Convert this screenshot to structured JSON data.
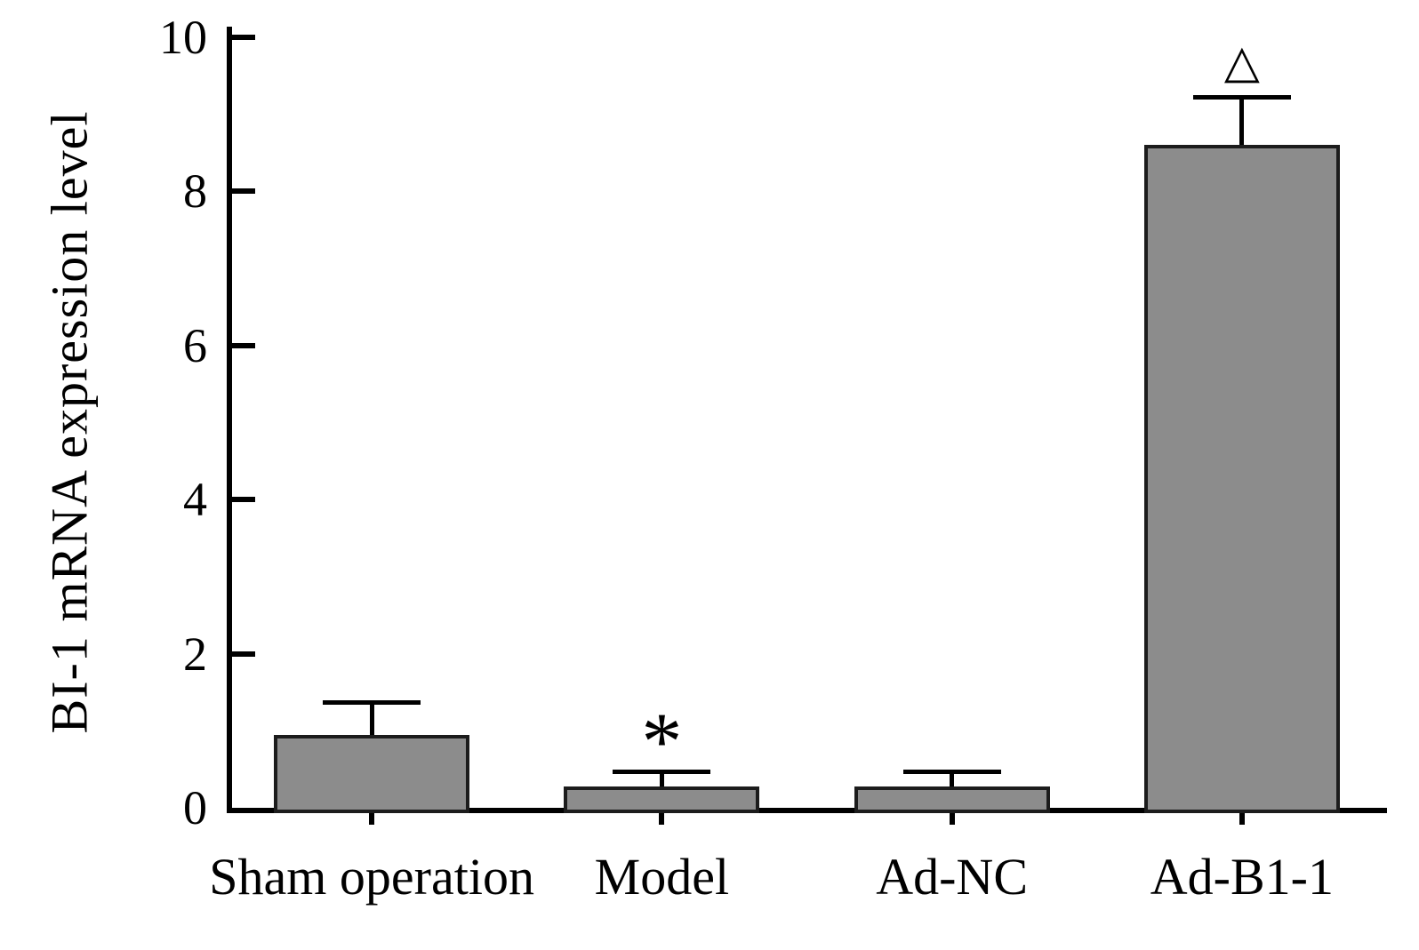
{
  "chart_data": {
    "type": "bar",
    "title": "",
    "xlabel": "",
    "ylabel": "BI-1 mRNA expression level",
    "categories": [
      "Sham operation",
      "Model",
      "Ad-NC",
      "Ad-B1-1"
    ],
    "values": [
      0.95,
      0.28,
      0.28,
      8.6
    ],
    "errors": [
      0.45,
      0.22,
      0.22,
      0.65
    ],
    "annotations": [
      "",
      "*",
      "",
      "△"
    ],
    "ylim": [
      0,
      10
    ],
    "yticks": [
      0,
      2,
      4,
      6,
      8,
      10
    ],
    "grid": false,
    "legend": "none",
    "bar_color": "#8c8c8c",
    "bar_edge_color": "#1c1c1c",
    "axis_color": "#000000"
  }
}
